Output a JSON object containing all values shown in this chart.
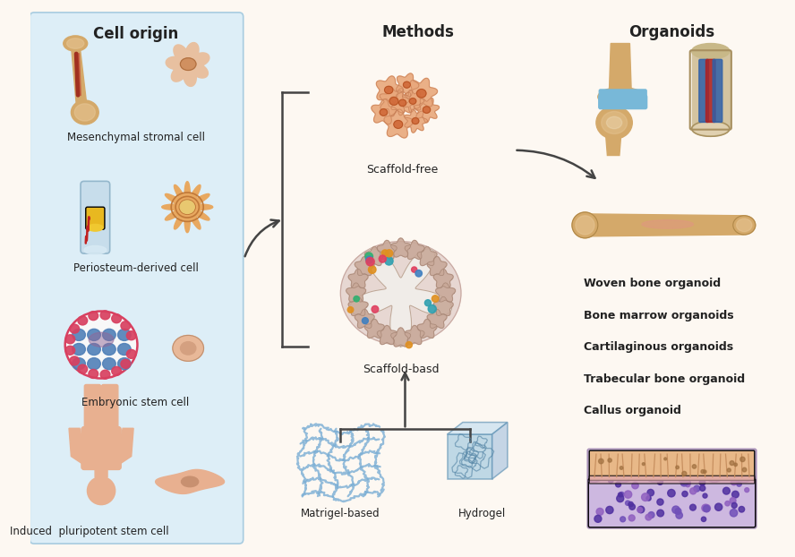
{
  "bg_color": "#fdf8f2",
  "left_panel_color": "#ddeef7",
  "left_panel_border": "#a8cce0",
  "title_cell_origin": "Cell origin",
  "title_methods": "Methods",
  "title_organoids": "Organoids",
  "cell_labels": [
    "Mesenchymal stromal cell",
    "Periosteum-derived cell",
    "Embryonic stem cell",
    "Induced  pluripotent stem cell"
  ],
  "method_labels": [
    "Scaffold-free",
    "Scaffold-basd"
  ],
  "scaffold_labels": [
    "Matrigel-based",
    "Hydrogel"
  ],
  "organoid_labels": [
    "Woven bone organoid",
    "Bone marrow organoids",
    "Cartilaginous organoids",
    "Trabecular bone organoid",
    "Callus organoid"
  ],
  "bone_color": "#d4a96a",
  "bone_light": "#e8c898",
  "bone_dark": "#b88848",
  "bone_marrow": "#a03020",
  "cell_peach": "#e8a878",
  "cell_dark": "#d07848",
  "cell_orange": "#e09050",
  "matrigel_color": "#7aaed4",
  "hydrogel_color": "#a8cce0",
  "embryo_pink": "#d84060",
  "embryo_blue": "#5080b8",
  "embryo_purple": "#906898",
  "skin_color": "#e8b090",
  "arrow_color": "#444444",
  "text_color": "#222222",
  "bracket_color": "#444444",
  "scaffold_ring_color": "#c8a898",
  "scaffold_bg": "#e8d8d0",
  "scaffold_star_fill": "#f0ece8"
}
